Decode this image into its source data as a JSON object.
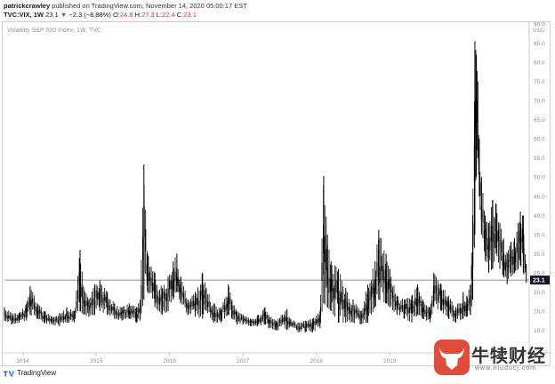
{
  "header": {
    "author": "patrickcrawley",
    "published": "published on TradingView.com, November 14, 2020 05:00:17 EST",
    "symbol": "TVC:VIX, 1W",
    "price": "23.1",
    "change": "−2.3 (−8.88%)",
    "o_label": "O:",
    "o_val": "24.8",
    "h_label": "H:",
    "h_val": "27.3",
    "l_label": "L:",
    "l_val": "22.4",
    "c_label": "C:",
    "c_val": "23.1"
  },
  "footer": {
    "brand": "TradingView"
  },
  "watermark": {
    "text": "牛犊财经",
    "sub": "www.niuducj.com"
  },
  "colors": {
    "line": "#000000",
    "grid": "#e0e3eb",
    "last_bg": "#131722",
    "accent_red": "#d32f2f",
    "wm_red": "#e04b3a"
  },
  "chart_data": {
    "type": "line",
    "title": "Volatility S&P 500 Index, 1W, TVC",
    "currency": "USD",
    "xlabel": "",
    "ylabel": "",
    "ylim": [
      5,
      90
    ],
    "xlim": [
      2013.75,
      2020.9
    ],
    "yticks": [
      "10.0",
      "15.0",
      "20.0",
      "25.0",
      "30.0",
      "35.0",
      "40.0",
      "45.0",
      "50.0",
      "55.0",
      "60.0",
      "65.0",
      "70.0",
      "75.0",
      "80.0",
      "85.0",
      "90.0"
    ],
    "xticks": [
      {
        "label": "2014",
        "x": 2014.0
      },
      {
        "label": "2015",
        "x": 2015.0
      },
      {
        "label": "2016",
        "x": 2016.0
      },
      {
        "label": "2017",
        "x": 2017.0
      },
      {
        "label": "2018",
        "x": 2018.0
      },
      {
        "label": "2019",
        "x": 2019.0
      }
    ],
    "last_value": "23.1",
    "last": 23.1,
    "series": [
      {
        "x": [
          2013.75,
          2013.85,
          2013.95,
          2014.05,
          2014.1,
          2014.2,
          2014.3,
          2014.4,
          2014.5,
          2014.6,
          2014.7,
          2014.78,
          2014.83,
          2014.9,
          2014.98,
          2015.05,
          2015.15,
          2015.25,
          2015.35,
          2015.45,
          2015.55,
          2015.6,
          2015.65,
          2015.7,
          2015.8,
          2015.9,
          2015.98,
          2016.05,
          2016.1,
          2016.15,
          2016.25,
          2016.35,
          2016.45,
          2016.5,
          2016.6,
          2016.7,
          2016.8,
          2016.85,
          2016.92,
          2017.0,
          2017.1,
          2017.2,
          2017.3,
          2017.35,
          2017.45,
          2017.6,
          2017.65,
          2017.75,
          2017.85,
          2017.95,
          2018.05,
          2018.1,
          2018.15,
          2018.2,
          2018.3,
          2018.4,
          2018.5,
          2018.6,
          2018.7,
          2018.8,
          2018.85,
          2018.95,
          2019.0,
          2019.1,
          2019.2,
          2019.3,
          2019.38,
          2019.45,
          2019.55,
          2019.6,
          2019.7,
          2019.8,
          2019.9,
          2020.0,
          2020.05,
          2020.1,
          2020.13,
          2020.16,
          2020.18,
          2020.2,
          2020.22,
          2020.25,
          2020.3,
          2020.35,
          2020.4,
          2020.45,
          2020.5,
          2020.55,
          2020.6,
          2020.65,
          2020.7,
          2020.75,
          2020.78,
          2020.82,
          2020.86
        ],
        "low": [
          12.5,
          11.5,
          12.0,
          12.5,
          14.0,
          13.0,
          11.8,
          11.5,
          11.0,
          12.0,
          12.0,
          15.0,
          14.0,
          13.5,
          14.0,
          15.0,
          14.0,
          13.0,
          12.5,
          13.0,
          12.0,
          12.5,
          18.0,
          20.0,
          16.0,
          14.0,
          15.0,
          18.0,
          20.0,
          17.0,
          14.0,
          13.5,
          13.0,
          15.0,
          12.0,
          12.0,
          14.0,
          13.0,
          11.5,
          11.5,
          11.0,
          11.0,
          11.5,
          10.5,
          10.0,
          10.0,
          11.0,
          9.5,
          9.5,
          9.5,
          10.5,
          17.0,
          16.0,
          15.0,
          12.0,
          12.0,
          12.0,
          11.5,
          12.0,
          16.0,
          18.0,
          17.0,
          16.0,
          14.0,
          13.0,
          12.0,
          14.0,
          13.0,
          12.0,
          16.0,
          15.0,
          13.0,
          12.0,
          13.0,
          13.5,
          14.0,
          18.0,
          35.0,
          50.0,
          55.0,
          45.0,
          35.0,
          28.0,
          25.0,
          26.0,
          30.0,
          26.0,
          24.0,
          22.0,
          24.0,
          25.0,
          26.0,
          27.0,
          25.0,
          22.4
        ],
        "high": [
          16.0,
          14.5,
          14.5,
          17.0,
          21.5,
          17.0,
          15.0,
          13.5,
          14.5,
          16.0,
          15.0,
          31.0,
          21.0,
          18.0,
          22.0,
          23.0,
          20.0,
          17.0,
          16.0,
          17.0,
          16.0,
          18.0,
          53.3,
          30.0,
          25.0,
          21.0,
          24.0,
          28.0,
          30.0,
          24.0,
          18.0,
          20.0,
          25.0,
          21.0,
          17.0,
          16.0,
          22.0,
          18.0,
          15.0,
          14.0,
          13.0,
          14.0,
          16.0,
          14.0,
          12.5,
          15.5,
          13.0,
          12.0,
          12.5,
          13.0,
          15.0,
          50.3,
          35.0,
          28.0,
          26.0,
          21.0,
          18.0,
          15.0,
          22.0,
          28.0,
          36.2,
          30.0,
          26.0,
          19.0,
          18.0,
          19.0,
          22.0,
          18.0,
          16.0,
          25.0,
          22.0,
          19.0,
          16.0,
          20.0,
          19.0,
          22.0,
          40.0,
          85.5,
          82.0,
          75.0,
          60.0,
          50.0,
          40.0,
          38.0,
          44.0,
          43.0,
          38.0,
          34.0,
          30.0,
          33.0,
          34.0,
          38.0,
          41.0,
          40.0,
          27.3
        ]
      }
    ]
  }
}
